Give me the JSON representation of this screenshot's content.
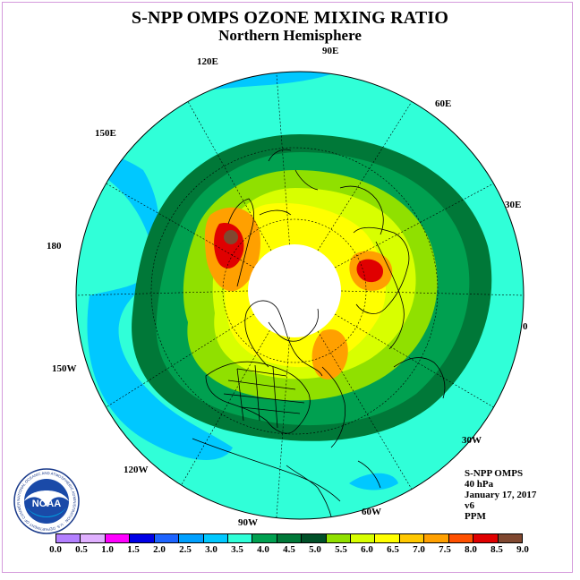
{
  "title": "S-NPP OMPS OZONE MIXING RATIO",
  "subtitle": "Northern Hemisphere",
  "longitude_labels": [
    "90E",
    "60E",
    "30E",
    "0",
    "30W",
    "60W",
    "90W",
    "120W",
    "150W",
    "180",
    "150E",
    "120E"
  ],
  "info": {
    "product": "S-NPP OMPS",
    "level": "40 hPa",
    "date": "January 17, 2017",
    "version": "v6",
    "units": "PPM"
  },
  "colorbar": {
    "labels": [
      "0.0",
      "0.5",
      "1.0",
      "1.5",
      "2.0",
      "2.5",
      "3.0",
      "3.5",
      "4.0",
      "4.5",
      "5.0",
      "5.5",
      "6.0",
      "6.5",
      "7.0",
      "7.5",
      "8.0",
      "8.5",
      "9.0"
    ],
    "colors": [
      "#b380ff",
      "#e0b0ff",
      "#ff00ff",
      "#0000e6",
      "#1e64ff",
      "#00a0ff",
      "#00c8ff",
      "#30ffd8",
      "#00a050",
      "#007838",
      "#005028",
      "#90e000",
      "#d8ff00",
      "#ffff00",
      "#ffc800",
      "#ffa000",
      "#ff5000",
      "#e00000",
      "#804830"
    ]
  },
  "map_fill": {
    "ocean_outer": "#30ffd8",
    "low_region": "#00c8ff",
    "dark_green": "#007838",
    "mid_green": "#00a050",
    "yellow_green": "#90e000",
    "lime": "#d8ff00",
    "yellow": "#ffff00",
    "orange": "#ffa000",
    "red": "#e00000",
    "polar_gap": "#ffffff"
  },
  "logo": {
    "name": "NOAA",
    "text": "NOAA",
    "ring_text": "NATIONAL OCEANIC AND ATMOSPHERIC ADMINISTRATION · U.S. DEPARTMENT OF COMMERCE"
  }
}
